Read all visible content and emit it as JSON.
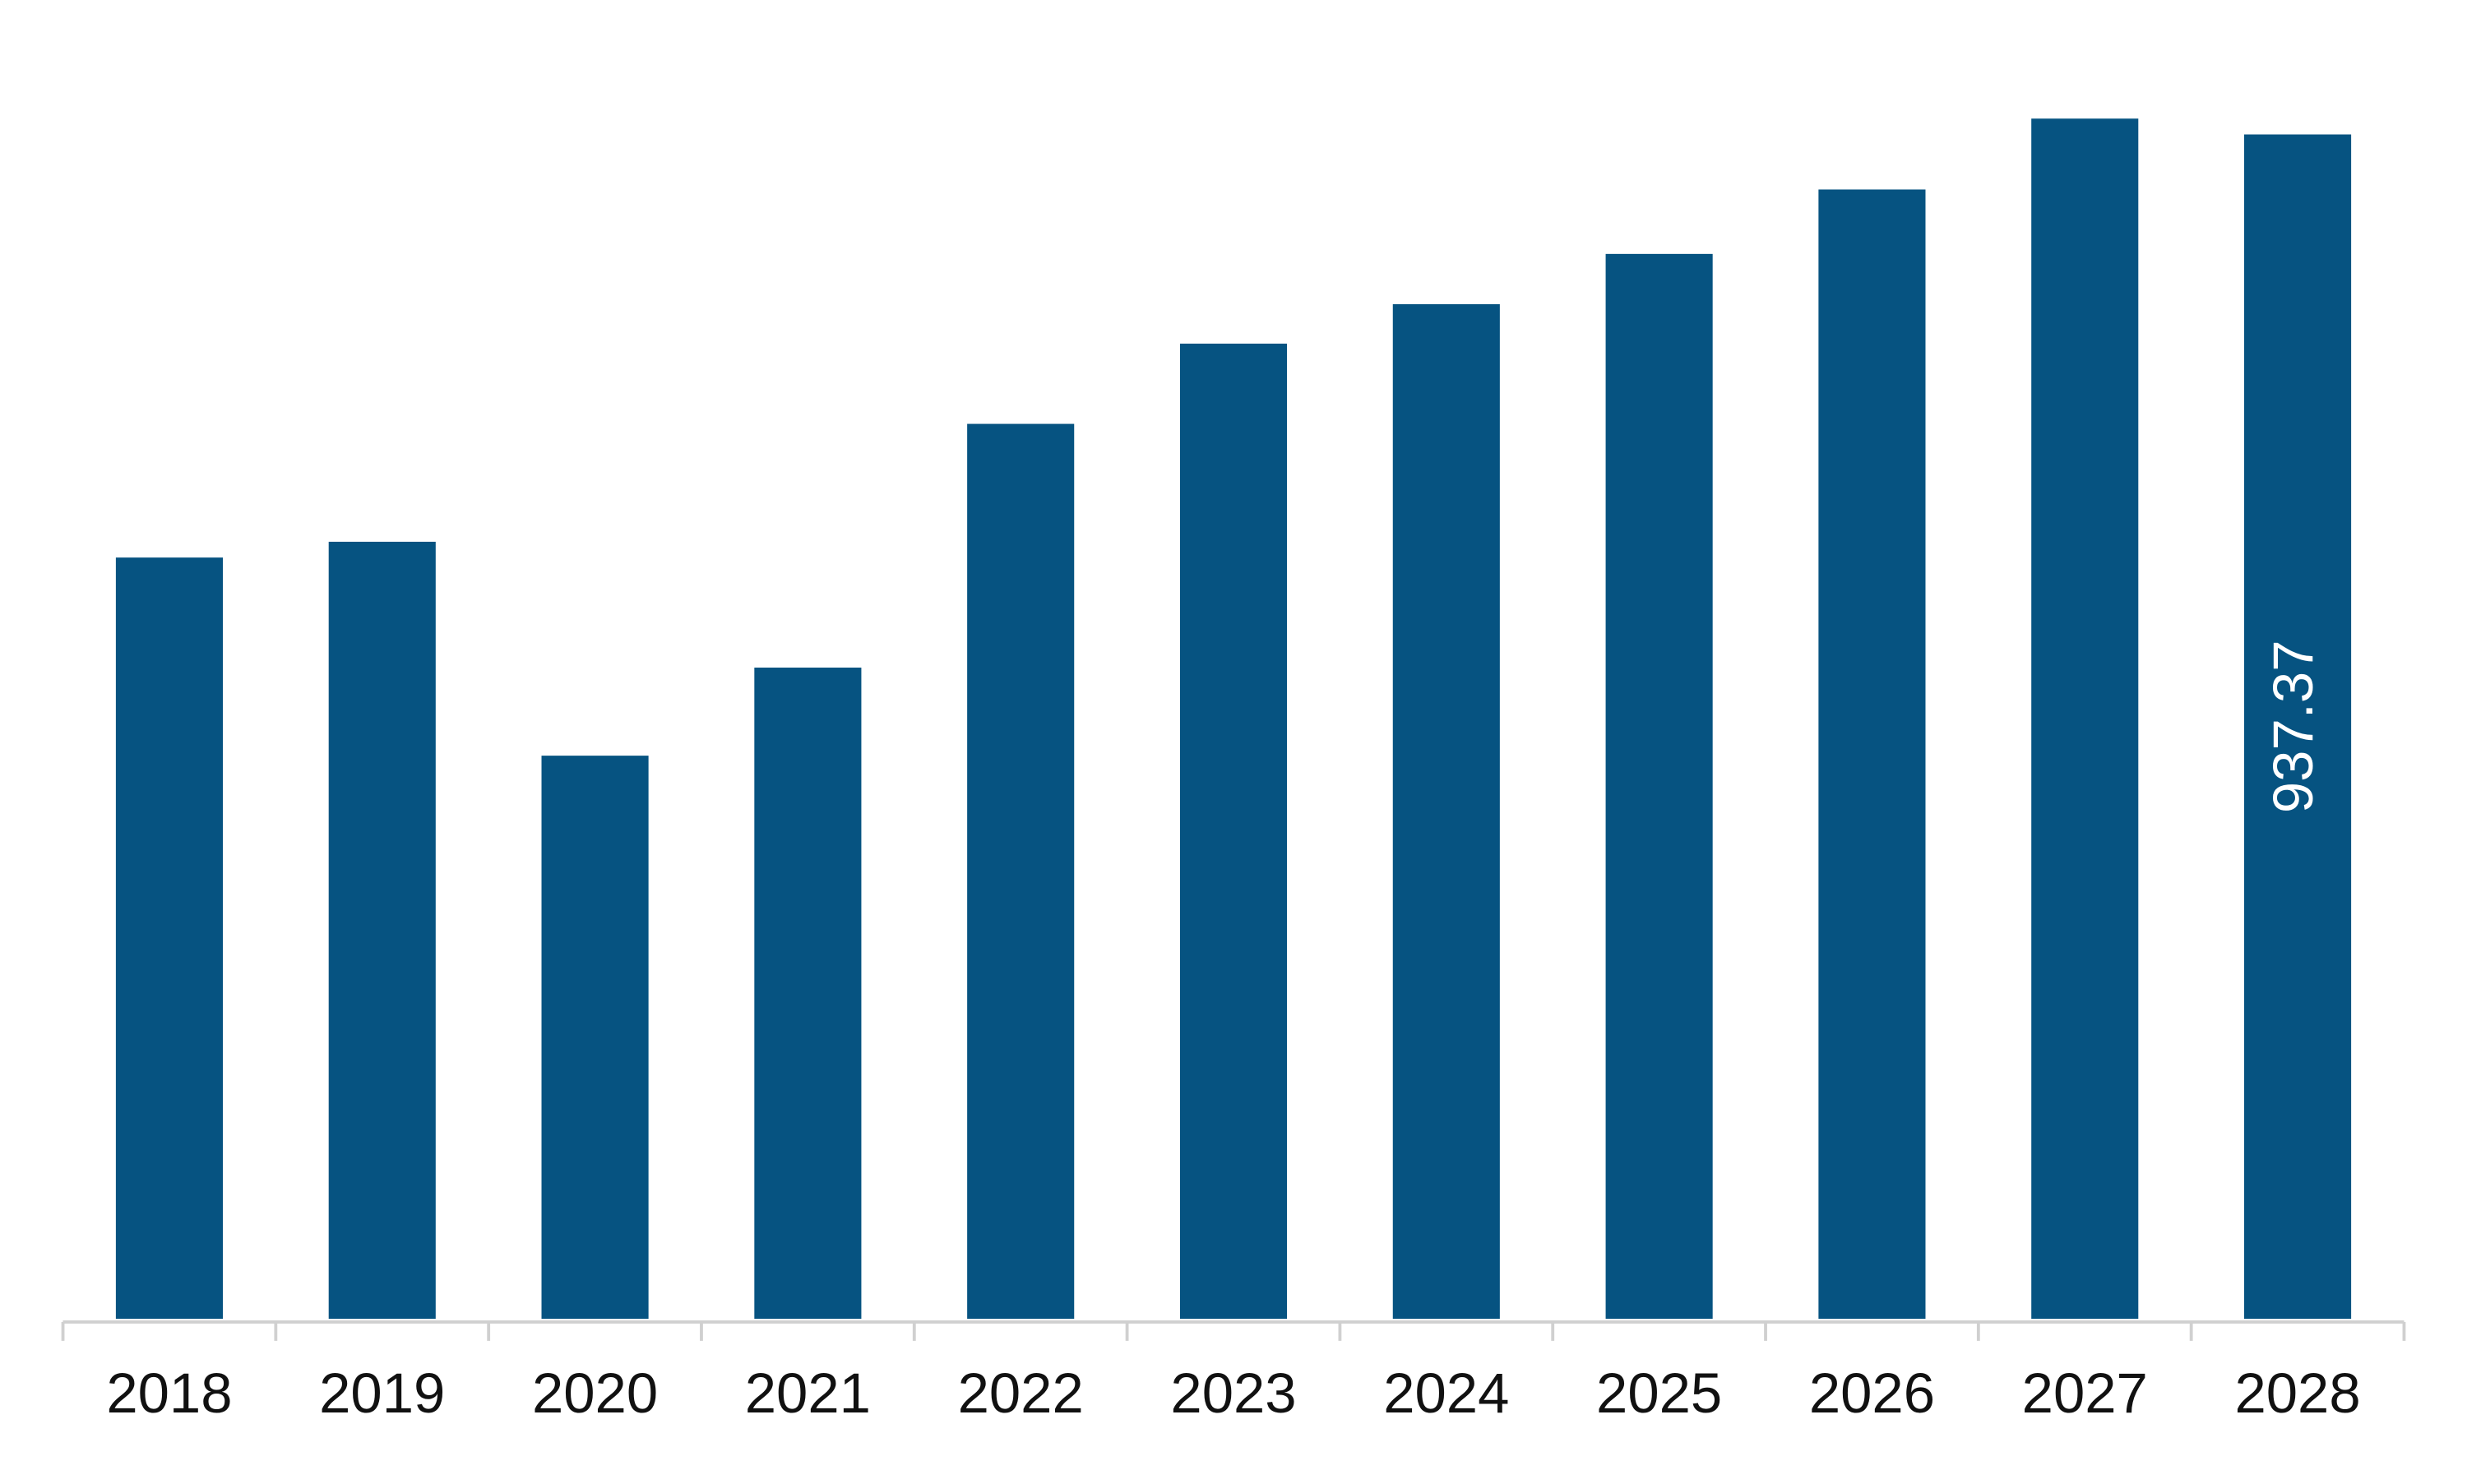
{
  "chart_data": {
    "type": "bar",
    "categories": [
      "2018",
      "2019",
      "2020",
      "2021",
      "2022",
      "2023",
      "2024",
      "2025",
      "2026",
      "2027",
      "2028"
    ],
    "values": [
      602.5,
      615.0,
      445.7,
      515.4,
      708.3,
      771.8,
      803.0,
      842.8,
      893.8,
      949.9,
      937.37
    ],
    "value_labels": [
      null,
      null,
      null,
      null,
      null,
      null,
      null,
      null,
      null,
      null,
      "937.37"
    ],
    "color": "#065381"
  }
}
